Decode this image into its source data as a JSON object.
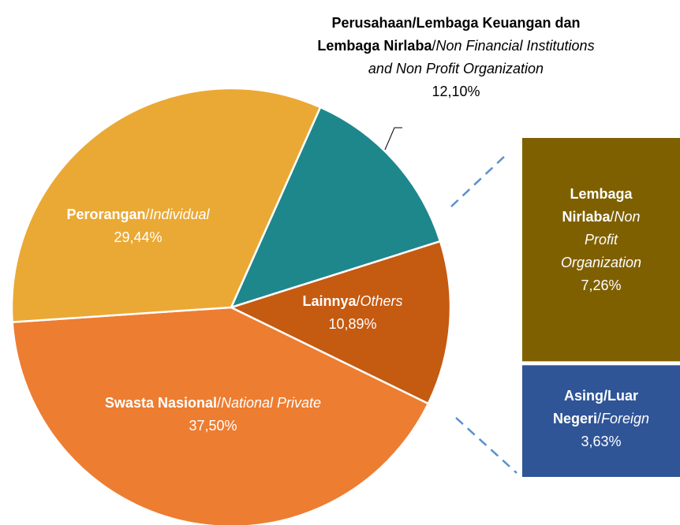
{
  "chart_data": {
    "type": "pie",
    "categories": [
      "Perusahaan/Lembaga Keuangan dan Lembaga Nirlaba/Non Financial Institutions and Non Profit Organization",
      "Lainnya/Others",
      "Swasta Nasional/National Private",
      "Perorangan/Individual"
    ],
    "values": [
      12.1,
      10.89,
      37.5,
      29.44
    ],
    "value_labels": [
      "12,10%",
      "10,89%",
      "37,50%",
      "29,44%"
    ],
    "colors": [
      "#1e878c",
      "#c55a11",
      "#ed7d31",
      "#eaa935"
    ],
    "breakdown": {
      "categories": [
        "Lembaga Nirlaba/Non Profit Organization",
        "Asing/Luar Negeri/Foreign"
      ],
      "values": [
        7.26,
        3.63
      ],
      "value_labels": [
        "7,26%",
        "3,63%"
      ],
      "colors": [
        "#7f6000",
        "#2f5597"
      ]
    }
  }
}
